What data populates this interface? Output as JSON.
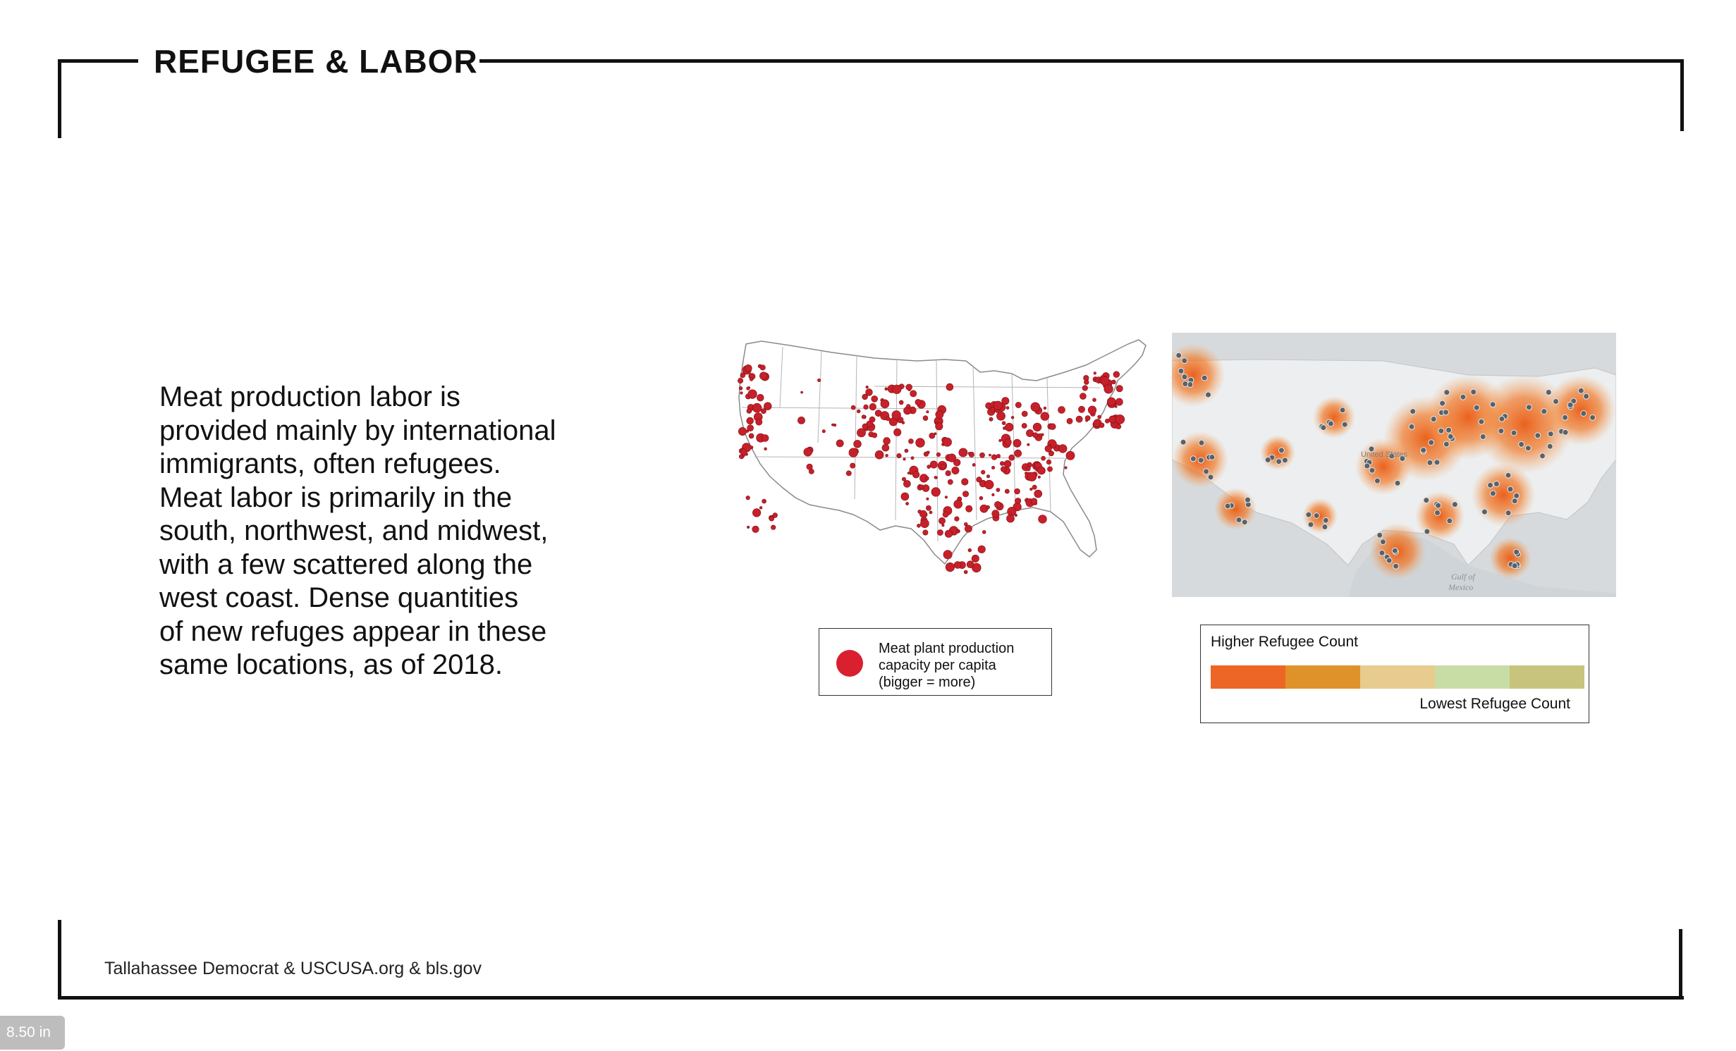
{
  "slide": {
    "title": "REFUGEE & LABOR",
    "body_lines": [
      "Meat production labor is",
      "provided mainly by international",
      "immigrants, often refugees.",
      "Meat labor is primarily in the",
      "south, northwest, and midwest,",
      "with a few scattered along the",
      "west coast. Dense quantities",
      "of new refuges appear in these",
      "same locations, as of 2018."
    ],
    "source": "Tallahassee Democrat & USCUSA.org & bls.gov"
  },
  "legend_meat": {
    "lines": [
      "Meat plant production",
      "capacity per capita",
      "(bigger = more)"
    ],
    "dot_color": "#d9202e"
  },
  "legend_refugee": {
    "high_label": "Higher Refugee Count",
    "low_label": "Lowest Refugee Count",
    "colors": [
      "#ed6625",
      "#e0922a",
      "#e8cb8e",
      "#c8dca6",
      "#c8c47e"
    ]
  },
  "map_refugee": {
    "labels": {
      "united_states": "United States",
      "gulf": "Gulf of",
      "mexico": "Mexico"
    }
  },
  "zoom": {
    "label": "8.50 in"
  }
}
